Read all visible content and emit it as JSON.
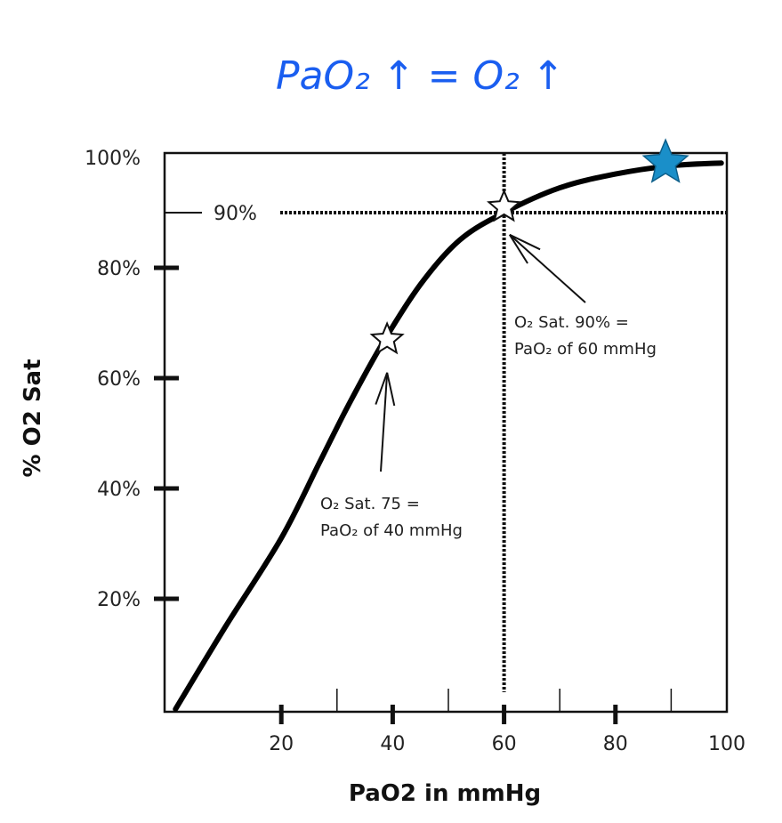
{
  "handwritten_note": "PaO₂ ↑ = O₂ ↑",
  "chart_data": {
    "type": "line",
    "title": "",
    "xlabel": "PaO2 in mmHg",
    "ylabel": "% O2 Sat",
    "xlim": [
      0,
      100
    ],
    "ylim": [
      0,
      100
    ],
    "x_ticks": [
      20,
      40,
      60,
      80,
      100
    ],
    "x_tick_labels": [
      "20",
      "40",
      "60",
      "80",
      "100"
    ],
    "x_minor_ticks": [
      30,
      50,
      70,
      90
    ],
    "y_ticks": [
      20,
      40,
      60,
      80,
      100
    ],
    "y_tick_labels": [
      "20%",
      "40%",
      "60%",
      "80%",
      "100%"
    ],
    "y_reference": {
      "value": 90,
      "label": "90%"
    },
    "x_reference": {
      "value": 60
    },
    "grid": false,
    "series": [
      {
        "x": [
          1,
          10,
          20,
          27,
          32,
          38,
          45,
          52,
          60,
          70,
          80,
          90,
          99
        ],
        "y": [
          0,
          15,
          31,
          45,
          55,
          66,
          77,
          85,
          90,
          94.5,
          97,
          98.5,
          99
        ],
        "color": "#000000"
      }
    ],
    "markers": [
      {
        "x": 39,
        "y": 67,
        "style": "outline-star"
      },
      {
        "x": 60,
        "y": 91,
        "style": "outline-star"
      },
      {
        "x": 89,
        "y": 99,
        "style": "filled-star",
        "color": "#1a8fc9"
      }
    ],
    "annotations": [
      {
        "line1": "O₂  Sat. 75 =",
        "line2": "PaO₂  of 40 mmHg",
        "points_to": [
          39,
          61
        ]
      },
      {
        "line1": "O₂  Sat. 90% =",
        "line2": "PaO₂  of 60 mmHg",
        "points_to": [
          61,
          86
        ]
      }
    ]
  }
}
